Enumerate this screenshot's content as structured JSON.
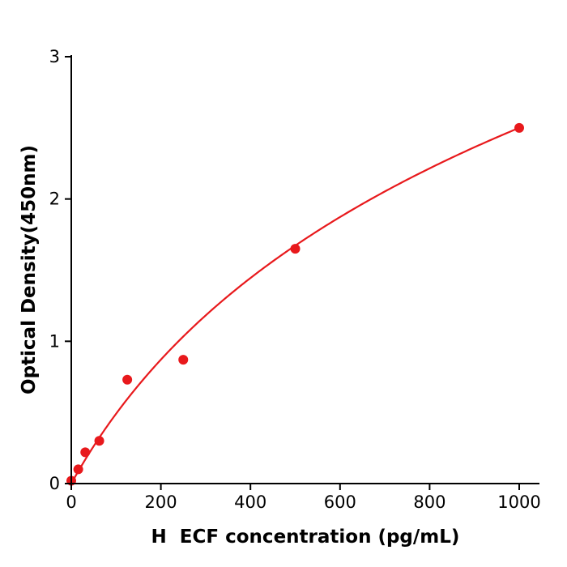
{
  "chart_data": {
    "type": "scatter",
    "title": "",
    "xlabel": "H  ECF concentration (pg/mL)",
    "ylabel": "Optical Density(450nm)",
    "x": [
      0,
      15.6,
      31.2,
      62.5,
      125,
      250,
      500,
      1000
    ],
    "y": [
      0.02,
      0.1,
      0.22,
      0.3,
      0.73,
      0.87,
      1.65,
      2.5
    ],
    "fit_curve": {
      "type": "logarithmic",
      "formula": "y = a * ln(1 + x/c)",
      "a": 1.705,
      "c": 300,
      "x_range": [
        0,
        1000
      ]
    },
    "x_ticks": [
      "0",
      "200",
      "400",
      "600",
      "800",
      "1000"
    ],
    "x_tick_values": [
      0,
      200,
      400,
      600,
      800,
      1000
    ],
    "y_ticks": [
      "0",
      "1",
      "2",
      "3"
    ],
    "y_tick_values": [
      0,
      1,
      2,
      3
    ],
    "xlim": [
      0,
      1000
    ],
    "ylim": [
      0,
      3
    ],
    "grid": false,
    "legend": null,
    "marker_color": "#e8191c",
    "line_color": "#e8191c",
    "axis_color": "#000000"
  }
}
